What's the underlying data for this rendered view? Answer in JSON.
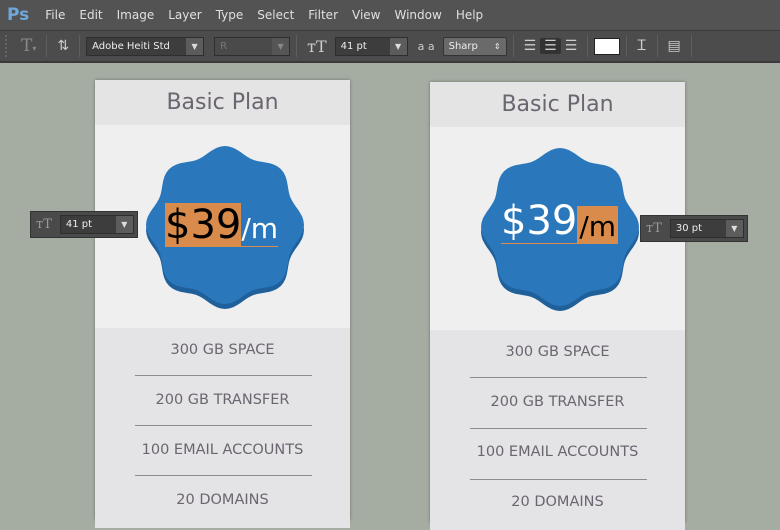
{
  "app": {
    "logo": "Ps",
    "menu": [
      "File",
      "Edit",
      "Image",
      "Layer",
      "Type",
      "Select",
      "Filter",
      "View",
      "Window",
      "Help"
    ]
  },
  "options": {
    "font_family": "Adobe Heiti Std",
    "font_style": "R",
    "font_size": "41 pt",
    "antialias": "Sharp",
    "aa_icon": "a a",
    "text_color": "#ffffff"
  },
  "cards": [
    {
      "title": "Basic Plan",
      "price": "$39",
      "per": "/m",
      "selected": "price",
      "features": [
        "300 GB SPACE",
        "200 GB TRANSFER",
        "100 EMAIL ACCOUNTS",
        "20 DOMAINS"
      ],
      "size_popup": "41 pt"
    },
    {
      "title": "Basic Plan",
      "price": "$39",
      "per": "/m",
      "selected": "per",
      "features": [
        "300 GB SPACE",
        "200 GB TRANSFER",
        "100 EMAIL ACCOUNTS",
        "20 DOMAINS"
      ],
      "size_popup": "30 pt"
    }
  ],
  "colors": {
    "badge": "#2b77bb",
    "highlight": "#d88b4a",
    "canvas": "#a5aca2"
  }
}
